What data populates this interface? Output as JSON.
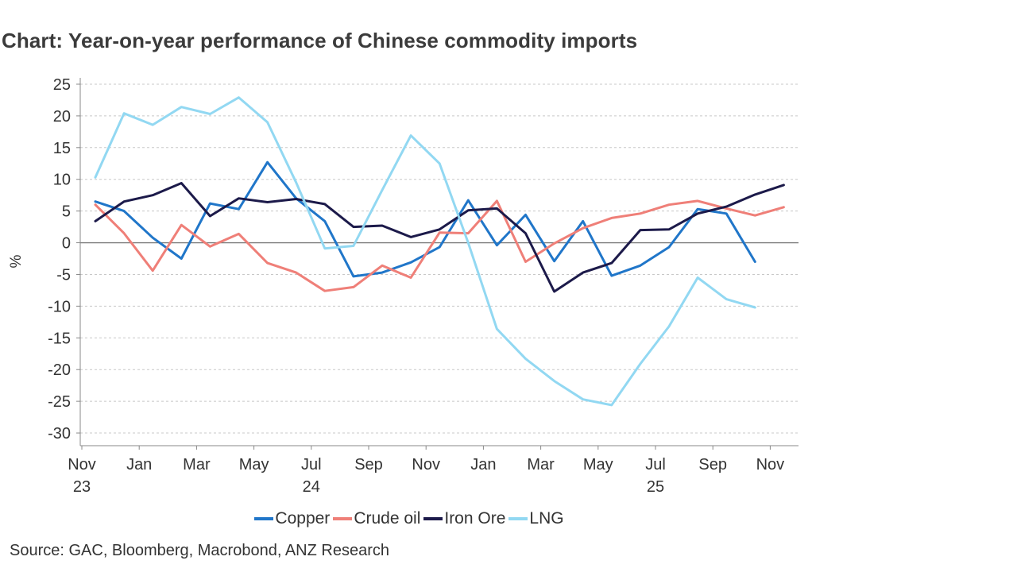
{
  "chart_data": {
    "type": "line",
    "title": "Chart: Year-on-year performance of Chinese commodity imports",
    "ylabel": "%",
    "xlabel": "",
    "ylim": [
      -32,
      26
    ],
    "yticks": [
      25,
      20,
      15,
      10,
      5,
      0,
      -5,
      -10,
      -15,
      -20,
      -25,
      -30
    ],
    "x_tick_labels": [
      {
        "month": "Nov",
        "year": "23"
      },
      {
        "month": "Jan",
        "year": ""
      },
      {
        "month": "Mar",
        "year": ""
      },
      {
        "month": "May",
        "year": ""
      },
      {
        "month": "Jul",
        "year": "24"
      },
      {
        "month": "Sep",
        "year": ""
      },
      {
        "month": "Nov",
        "year": ""
      },
      {
        "month": "Jan",
        "year": ""
      },
      {
        "month": "Mar",
        "year": ""
      },
      {
        "month": "May",
        "year": ""
      },
      {
        "month": "Jul",
        "year": "25"
      },
      {
        "month": "Sep",
        "year": ""
      },
      {
        "month": "Nov",
        "year": ""
      }
    ],
    "series": [
      {
        "name": "Copper",
        "color": "#2076c9",
        "values": [
          6.5,
          5.0,
          0.8,
          -2.5,
          6.2,
          5.3,
          12.7,
          7.0,
          3.4,
          -5.3,
          -4.7,
          -3.1,
          -0.7,
          6.7,
          -0.4,
          4.4,
          -2.9,
          3.4,
          -5.2,
          -3.6,
          -0.7,
          5.3,
          4.6,
          -3.0
        ]
      },
      {
        "name": "Crude oil",
        "color": "#ef7f78",
        "values": [
          6.0,
          1.5,
          -4.4,
          2.8,
          -0.6,
          1.4,
          -3.2,
          -4.7,
          -7.6,
          -7.0,
          -3.6,
          -5.5,
          1.6,
          1.5,
          6.6,
          -3.0,
          -0.1,
          2.3,
          3.9,
          4.6,
          6.0,
          6.6,
          5.4,
          4.3,
          5.6
        ]
      },
      {
        "name": "Iron Ore",
        "color": "#1c1a4a",
        "values": [
          3.4,
          6.5,
          7.5,
          9.4,
          4.2,
          7.0,
          6.4,
          6.9,
          6.1,
          2.5,
          2.7,
          0.9,
          2.1,
          5.1,
          5.4,
          1.5,
          -7.7,
          -4.7,
          -3.2,
          2.0,
          2.1,
          4.6,
          5.7,
          7.6,
          9.1
        ]
      },
      {
        "name": "LNG",
        "color": "#92d8f2",
        "values": [
          10.3,
          20.4,
          18.6,
          21.4,
          20.3,
          22.9,
          19.0,
          9.5,
          -0.9,
          -0.5,
          8.3,
          16.9,
          12.5,
          0.0,
          -13.6,
          -18.3,
          -21.8,
          -24.7,
          -25.6,
          -19.1,
          -13.2,
          -5.5,
          -8.9,
          -10.2
        ]
      }
    ]
  },
  "legend": {
    "items": [
      "Copper",
      "Crude oil",
      "Iron Ore",
      "LNG"
    ]
  },
  "source": "Source: GAC, Bloomberg, Macrobond, ANZ Research"
}
